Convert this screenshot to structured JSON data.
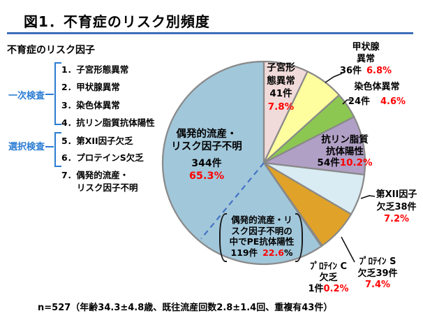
{
  "slide": {
    "title": "図1．不育症のリスク別頻度",
    "footer": "n=527（年齢34.3±4.8歳、既往流産回数2.8±1.4回、重複有43件）"
  },
  "risk_list": {
    "header": "不育症のリスク因子",
    "groups": [
      {
        "label": "一次検査",
        "items": [
          "1．子宮形態異常",
          "2．甲状腺異常",
          "3．染色体異常",
          "4．抗リン脂質抗体陽性"
        ]
      },
      {
        "label": "選択検査",
        "items": [
          "5．第XII因子欠乏",
          "6．プロテインS欠乏"
        ]
      }
    ],
    "item7": {
      "line1": "7．偶発的流産・",
      "line2": "リスク因子不明"
    }
  },
  "chart_data": {
    "type": "pie",
    "title": "不育症のリスク別頻度",
    "legend_position": "none",
    "direction": "clockwise",
    "start_angle_deg": 0,
    "slices": [
      {
        "name": "子宮形態異常",
        "count": 41,
        "pct": 7.8,
        "color": "#F1DBDA"
      },
      {
        "name": "甲状腺異常",
        "count": 36,
        "pct": 6.8,
        "color": "#FEFE9E"
      },
      {
        "name": "染色体異常",
        "count": 24,
        "pct": 4.6,
        "color": "#8CC751"
      },
      {
        "name": "抗リン脂質抗体陽性",
        "count": 54,
        "pct": 10.2,
        "color": "#B1A0C6"
      },
      {
        "name": "第XII因子欠乏",
        "count": 38,
        "pct": 7.2,
        "color": "#D9EBF3"
      },
      {
        "name": "プロテインS欠乏",
        "count": 39,
        "pct": 7.4,
        "color": "#E0A228"
      },
      {
        "name": "プロテインC欠乏",
        "count": 1,
        "pct": 0.2,
        "color": "#FFFFFF"
      },
      {
        "name": "偶発的流産・リスク因子不明",
        "count": 344,
        "pct": 65.3,
        "color": "#A1C7DA"
      }
    ],
    "sub_annotation": {
      "name": "偶発的流産・リスク因子不明の中でPE抗体陽性",
      "count": 119,
      "pct": 22.6,
      "marker": "dashed-radius-line",
      "color": "#4472C4"
    }
  },
  "pie_labels": {
    "main": {
      "line1": "偶発的流産・",
      "line2": "リスク因子不明",
      "count": "344件",
      "pct": "65.3%"
    },
    "uterine": {
      "line1": "子宮形",
      "line2": "態異常",
      "count": "41件",
      "pct": "7.8%"
    },
    "thyroid": {
      "line1": "甲状腺",
      "line2": "異常",
      "count": "36件",
      "pct": "6.8%"
    },
    "chromosome": {
      "line1": "染色体異常",
      "count": "24件",
      "pct": "4.6%"
    },
    "apl": {
      "line1": "抗リン脂質",
      "line2": "抗体陽性",
      "count": "54件",
      "pct": "10.2%"
    },
    "f12": {
      "line1": "第XII因子",
      "line2": "欠乏38件",
      "pct": "7.2%"
    },
    "ps": {
      "line1": "ﾌﾟﾛﾃｲﾝ S",
      "line2": "欠乏39件",
      "pct": "7.4%"
    },
    "pc": {
      "line1": "ﾌﾟﾛﾃｲﾝ C",
      "line2": "欠乏",
      "count": "1件",
      "pct": "0.2%"
    },
    "pe": {
      "line1": "偶発的流産・リ",
      "line2": "スク因子不明の",
      "line3": "中でPE抗体陽性",
      "count": "119件",
      "pct": "22.6",
      "pct_suffix": "%"
    }
  },
  "colors": {
    "title_underline": "#3E6FB8",
    "accent_blue": "#2B7CD3",
    "value_red": "#FF0000",
    "slice_border": "#898989",
    "dashed_line_blue": "#4472C4"
  }
}
